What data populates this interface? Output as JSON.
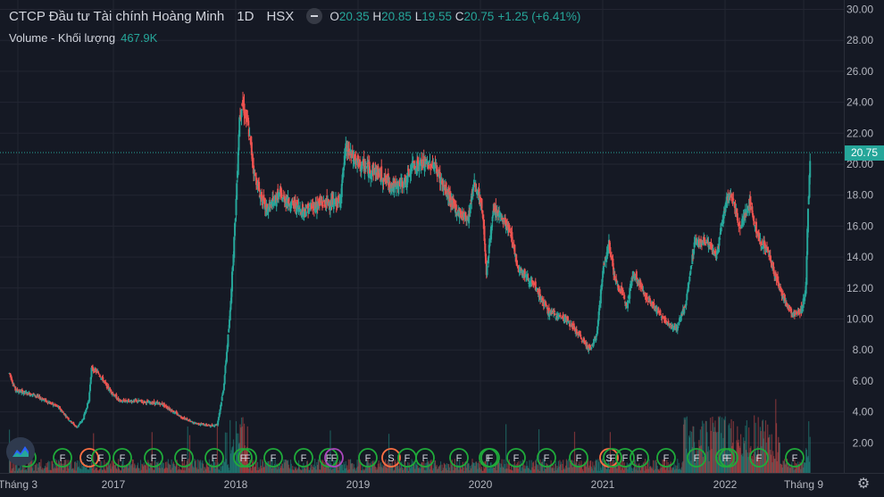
{
  "header": {
    "symbol_name": "CTCP Đầu tư Tài chính Hoàng Minh",
    "interval": "1D",
    "exchange": "HSX",
    "open_label": "O",
    "open_value": "20.35",
    "high_label": "H",
    "high_value": "20.85",
    "low_label": "L",
    "low_value": "19.55",
    "close_label": "C",
    "close_value": "20.75",
    "change": "+1.25 (+6.41%)"
  },
  "volume_legend": {
    "label": "Volume - Khối lượng",
    "value": "467.9K"
  },
  "last_price_tag": "20.75",
  "colors": {
    "up": "#26a69a",
    "down": "#ef5350",
    "background": "#151924",
    "grid": "#232632",
    "axis_text": "#b2b5be"
  },
  "chart_data": {
    "type": "candlestick",
    "price_axis_ticks": [
      "30.00",
      "28.00",
      "26.00",
      "24.00",
      "22.00",
      "20.00",
      "18.00",
      "16.00",
      "14.00",
      "12.00",
      "10.00",
      "8.00",
      "6.00",
      "4.00",
      "2.00"
    ],
    "time_axis_ticks": [
      "Tháng 3",
      "2017",
      "2018",
      "2019",
      "2020",
      "2021",
      "2022",
      "Tháng 9"
    ],
    "ylim": [
      0.7,
      30.0
    ],
    "last_price": 20.75,
    "price_path": [
      [
        2016.15,
        6.5
      ],
      [
        2016.2,
        5.4
      ],
      [
        2016.35,
        5.1
      ],
      [
        2016.55,
        4.3
      ],
      [
        2016.65,
        3.4
      ],
      [
        2016.7,
        3.0
      ],
      [
        2016.75,
        3.5
      ],
      [
        2016.8,
        4.8
      ],
      [
        2016.82,
        6.8
      ],
      [
        2016.88,
        6.5
      ],
      [
        2016.95,
        5.6
      ],
      [
        2017.05,
        4.7
      ],
      [
        2017.2,
        4.7
      ],
      [
        2017.4,
        4.5
      ],
      [
        2017.55,
        3.7
      ],
      [
        2017.65,
        3.3
      ],
      [
        2017.8,
        3.1
      ],
      [
        2017.85,
        3.2
      ],
      [
        2017.9,
        5.5
      ],
      [
        2017.95,
        10.0
      ],
      [
        2018.0,
        17.0
      ],
      [
        2018.03,
        23.0
      ],
      [
        2018.05,
        24.0
      ],
      [
        2018.1,
        22.5
      ],
      [
        2018.15,
        19.5
      ],
      [
        2018.2,
        18.0
      ],
      [
        2018.25,
        17.0
      ],
      [
        2018.35,
        18.0
      ],
      [
        2018.45,
        17.5
      ],
      [
        2018.55,
        17.0
      ],
      [
        2018.7,
        17.5
      ],
      [
        2018.85,
        17.5
      ],
      [
        2018.9,
        21.0
      ],
      [
        2019.0,
        20.0
      ],
      [
        2019.15,
        19.5
      ],
      [
        2019.3,
        18.5
      ],
      [
        2019.4,
        19.0
      ],
      [
        2019.45,
        20.0
      ],
      [
        2019.55,
        20.0
      ],
      [
        2019.62,
        20.0
      ],
      [
        2019.7,
        18.5
      ],
      [
        2019.8,
        17.0
      ],
      [
        2019.9,
        16.5
      ],
      [
        2019.95,
        19.0
      ],
      [
        2019.98,
        18.0
      ],
      [
        2020.02,
        16.8
      ],
      [
        2020.05,
        13.0
      ],
      [
        2020.1,
        16.8
      ],
      [
        2020.15,
        16.8
      ],
      [
        2020.25,
        15.5
      ],
      [
        2020.3,
        13.5
      ],
      [
        2020.45,
        12.0
      ],
      [
        2020.55,
        10.5
      ],
      [
        2020.7,
        10.0
      ],
      [
        2020.85,
        8.5
      ],
      [
        2020.9,
        8.0
      ],
      [
        2020.95,
        9.0
      ],
      [
        2021.0,
        13.0
      ],
      [
        2021.05,
        15.0
      ],
      [
        2021.1,
        12.5
      ],
      [
        2021.2,
        11.0
      ],
      [
        2021.25,
        13.0
      ],
      [
        2021.35,
        11.5
      ],
      [
        2021.5,
        10.0
      ],
      [
        2021.6,
        9.3
      ],
      [
        2021.68,
        11.0
      ],
      [
        2021.75,
        15.0
      ],
      [
        2021.85,
        15.0
      ],
      [
        2021.93,
        14.0
      ],
      [
        2022.0,
        17.5
      ],
      [
        2022.05,
        18.0
      ],
      [
        2022.12,
        16.0
      ],
      [
        2022.2,
        17.5
      ],
      [
        2022.28,
        15.0
      ],
      [
        2022.35,
        14.5
      ],
      [
        2022.42,
        12.5
      ],
      [
        2022.5,
        11.0
      ],
      [
        2022.55,
        10.3
      ],
      [
        2022.62,
        10.5
      ],
      [
        2022.66,
        12.0
      ],
      [
        2022.68,
        17.5
      ],
      [
        2022.7,
        20.75
      ]
    ],
    "event_markers": [
      "F",
      "F",
      "S",
      "F",
      "F",
      "F",
      "F",
      "F",
      "F",
      "F",
      "F",
      "F",
      "F",
      "F",
      "F",
      "S",
      "F",
      "F",
      "F",
      "F",
      "F",
      "F",
      "F",
      "F",
      "S",
      "F",
      "F",
      "F",
      "F",
      "F",
      "F",
      "F",
      "F",
      "F"
    ]
  }
}
